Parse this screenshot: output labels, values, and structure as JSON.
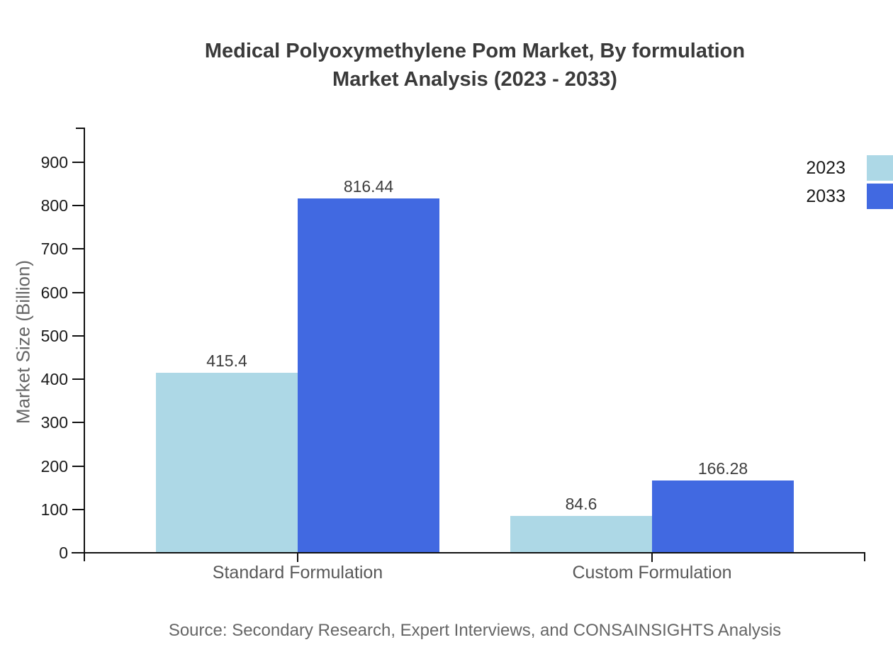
{
  "title": {
    "line1": "Medical Polyoxymethylene Pom Market, By formulation",
    "line2": "Market Analysis (2023 - 2033)"
  },
  "source": "Source: Secondary Research, Expert Interviews, and CONSAINSIGHTS Analysis",
  "chart_data": {
    "type": "bar",
    "title": "Medical Polyoxymethylene Pom Market, By formulation Market Analysis (2023 - 2033)",
    "categories": [
      "Standard Formulation",
      "Custom Formulation"
    ],
    "series": [
      {
        "name": "2023",
        "color": "#ADD8E6",
        "values": [
          415.4,
          84.6
        ]
      },
      {
        "name": "2033",
        "color": "#4169E1",
        "values": [
          816.44,
          166.28
        ]
      }
    ],
    "xlabel": "",
    "ylabel": "Market Size (Billion)",
    "ylim": [
      0,
      980
    ],
    "yticks": [
      0,
      100,
      200,
      300,
      400,
      500,
      600,
      700,
      800,
      900
    ],
    "grid": false,
    "legend_position": "upper-right-outside",
    "bar_value_labels": [
      "415.4",
      "816.44",
      "84.6",
      "166.28"
    ],
    "axis_color": "#111111",
    "text_colors": {
      "title": "#3a3a3a",
      "axis_title": "#666666",
      "tick_labels": "#1a1a1a",
      "category_labels": "#595959",
      "source": "#666666"
    }
  }
}
